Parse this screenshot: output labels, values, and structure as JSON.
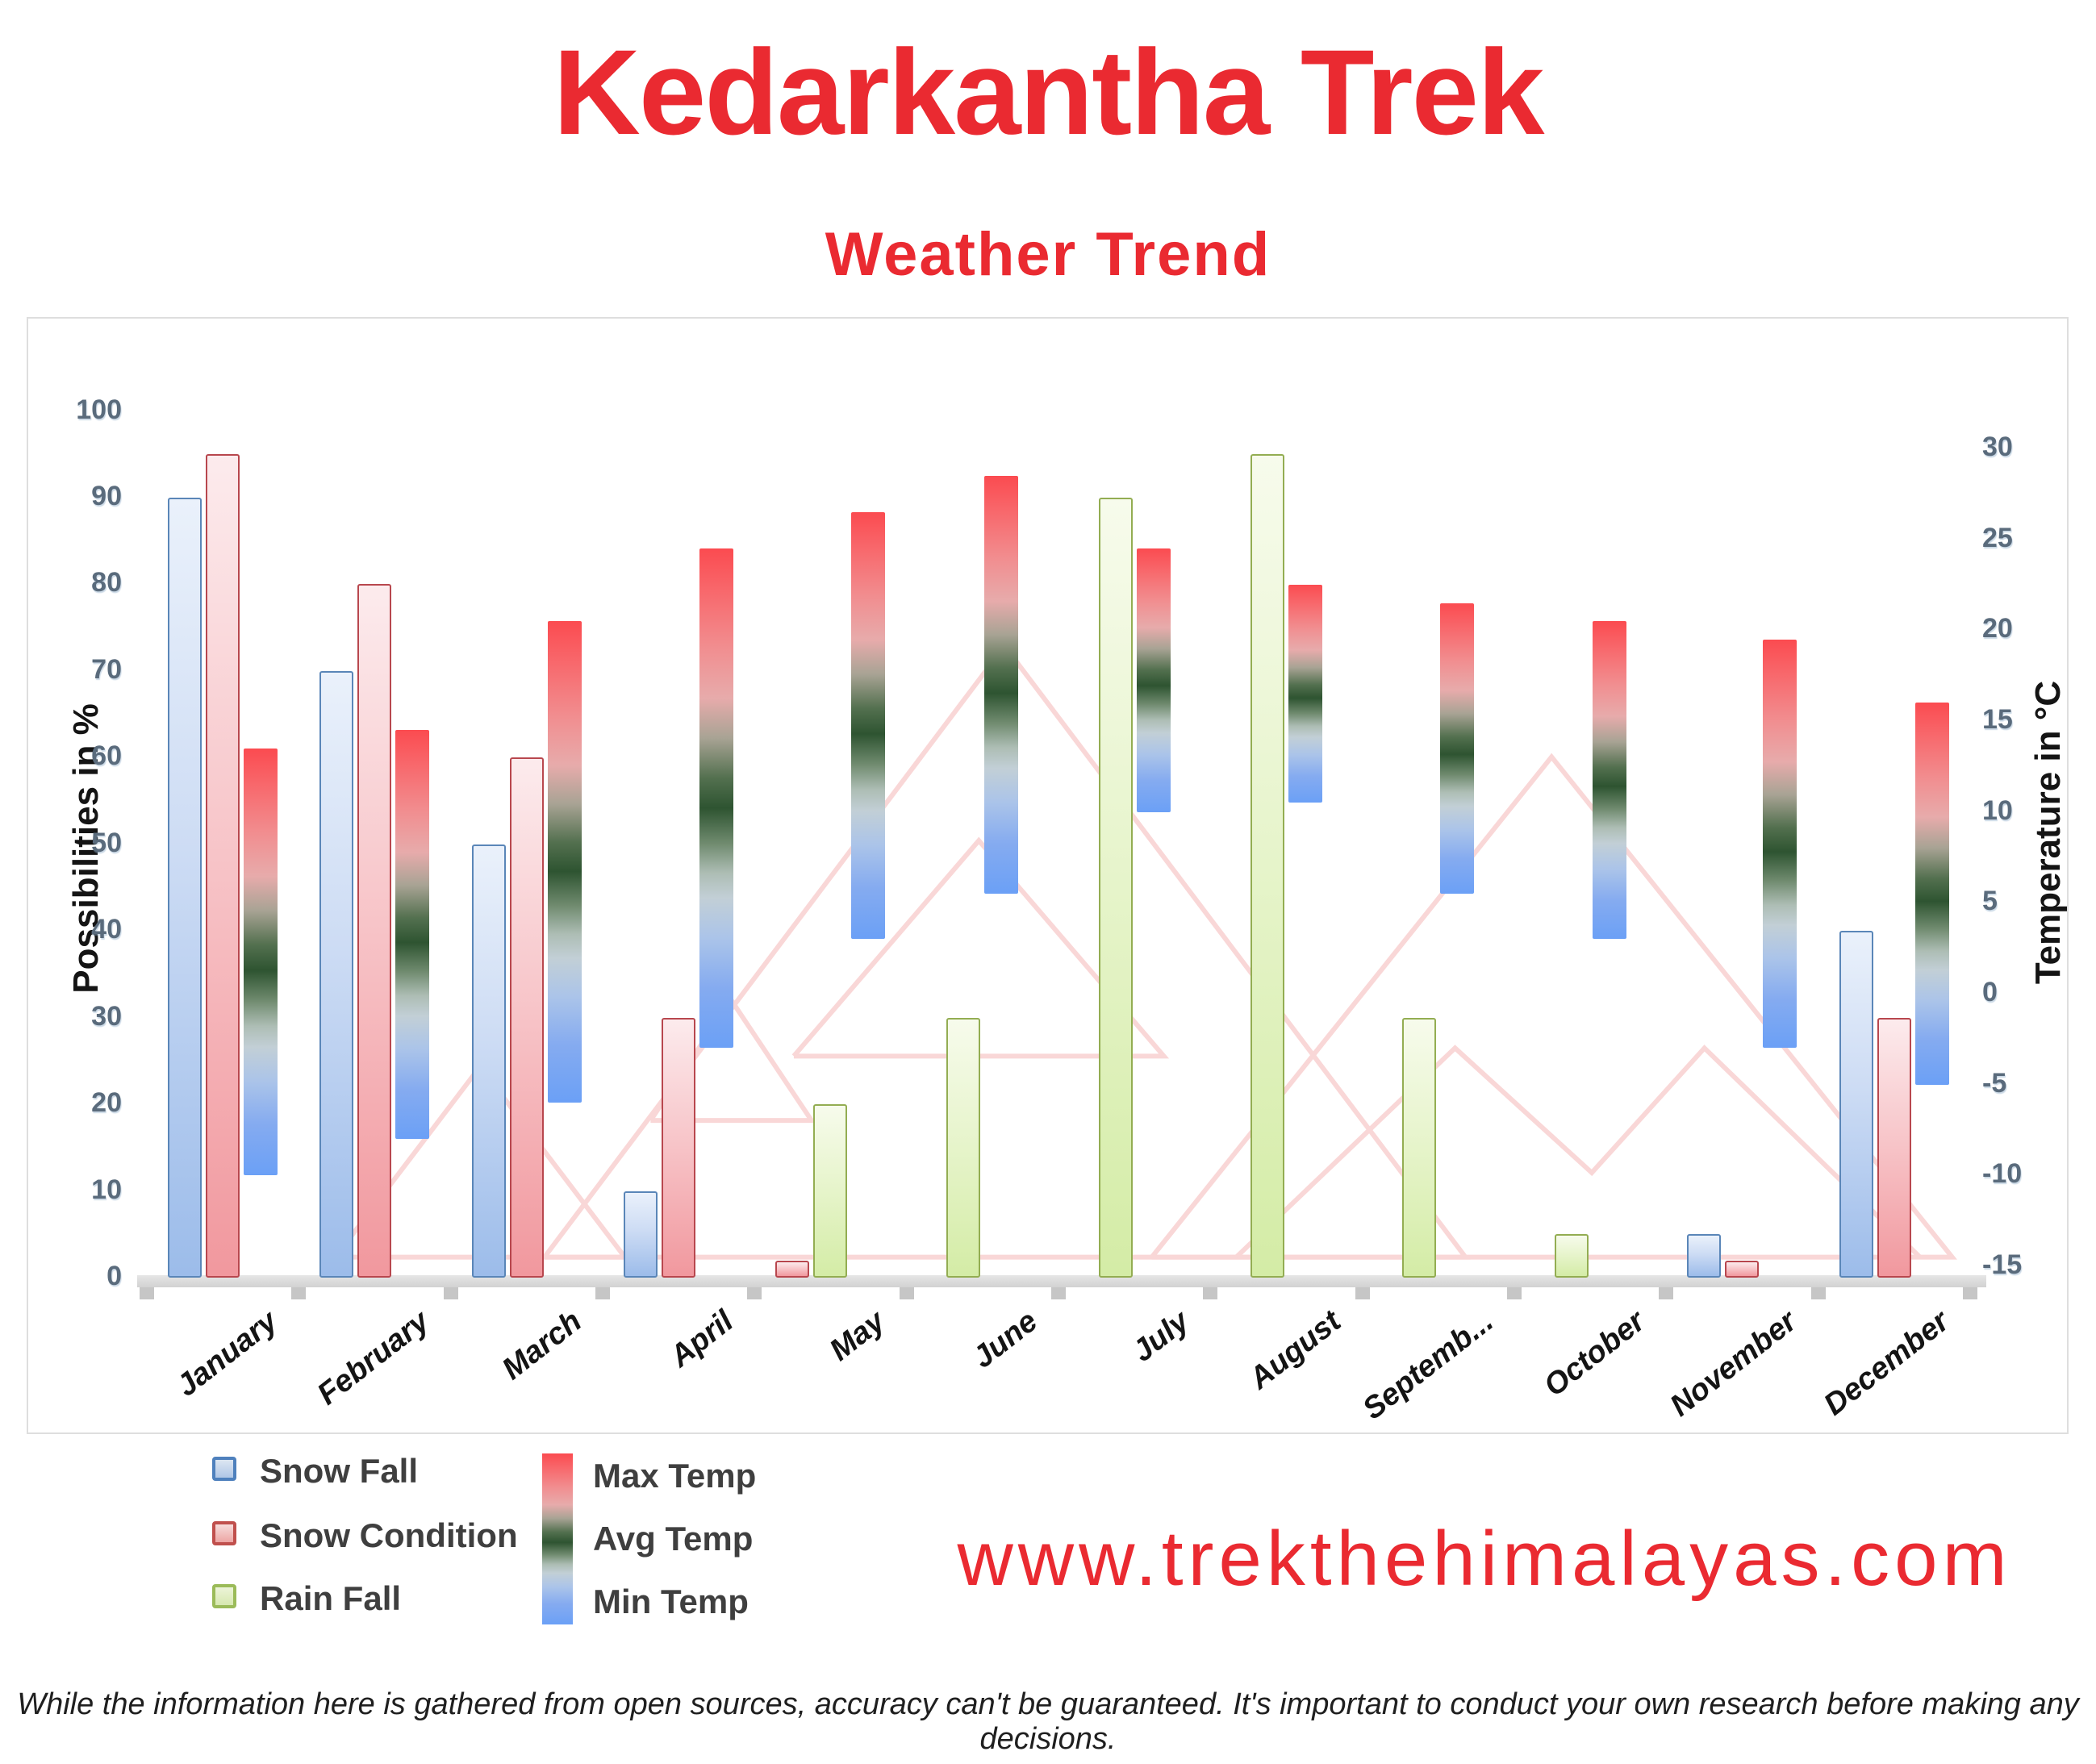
{
  "header": {
    "title": "Kedarkantha Trek",
    "subtitle": "Weather Trend"
  },
  "axes": {
    "left_title": "Possibilities in %",
    "right_title": "Temperature in °C",
    "left_ticks": [
      0,
      10,
      20,
      30,
      40,
      50,
      60,
      70,
      80,
      90,
      100
    ],
    "right_ticks": [
      30,
      25,
      20,
      15,
      10,
      5,
      0,
      -5,
      -10,
      -15
    ]
  },
  "legend": {
    "snow_fall": "Snow Fall",
    "snow_condition": "Snow Condition",
    "rain_fall": "Rain Fall",
    "max_temp": "Max Temp",
    "avg_temp": "Avg Temp",
    "min_temp": "Min Temp"
  },
  "footer": {
    "website": "www.trekthehimalayas.com",
    "disclaimer": "While the information here is gathered from open sources, accuracy can't be guaranteed. It's important to conduct your own research before making any decisions."
  },
  "colors": {
    "accent_red": "#ea2a31",
    "snow_fall_border": "#5a86b8",
    "snow_fall_fill": "#9cbcea",
    "snow_condition_border": "#b8474e",
    "snow_condition_fill": "#f1989e",
    "rain_fall_border": "#93ad52",
    "rain_fall_fill": "#d4eca6",
    "temp_max_color": "#fb4b50",
    "temp_avg_color": "#2e5431",
    "temp_min_color": "#6ba0f6",
    "tick_label_color": "#5a6b7c",
    "watermark_color": "#f9d7d7"
  },
  "chart_data": {
    "type": "bar",
    "title": "Kedarkantha Trek — Weather Trend",
    "categories": [
      "January",
      "February",
      "March",
      "April",
      "May",
      "June",
      "July",
      "August",
      "September",
      "October",
      "November",
      "December"
    ],
    "category_labels_display": [
      "January",
      "February",
      "March",
      "April",
      "May",
      "June",
      "July",
      "August",
      "Septemb...",
      "October",
      "November",
      "December"
    ],
    "series": [
      {
        "name": "Snow Fall",
        "axis": "left",
        "unit": "%",
        "values": [
          90,
          70,
          50,
          10,
          0,
          0,
          0,
          0,
          0,
          0,
          5,
          40
        ]
      },
      {
        "name": "Snow Condition",
        "axis": "left",
        "unit": "%",
        "values": [
          95,
          80,
          60,
          30,
          2,
          0,
          0,
          0,
          0,
          0,
          2,
          30
        ]
      },
      {
        "name": "Rain Fall",
        "axis": "left",
        "unit": "%",
        "values": [
          0,
          0,
          0,
          0,
          20,
          30,
          90,
          95,
          30,
          5,
          0,
          0
        ]
      },
      {
        "name": "Max Temp",
        "axis": "right",
        "unit": "°C",
        "values": [
          13.5,
          14.5,
          20.5,
          24.5,
          26.5,
          28.5,
          24.5,
          22.5,
          21.5,
          20.5,
          19.5,
          16
        ]
      },
      {
        "name": "Min Temp",
        "axis": "right",
        "unit": "°C",
        "values": [
          -10,
          -8,
          -6,
          -3,
          3,
          5.5,
          10,
          10.5,
          5.5,
          3,
          -3,
          -5
        ]
      }
    ],
    "xlabel": "",
    "ylabel_left": "Possibilities in %",
    "ylabel_right": "Temperature in °C",
    "left_axis_range": [
      0,
      100
    ],
    "right_axis_range": [
      -15,
      30
    ],
    "grid": false,
    "legend_position": "bottom-left",
    "notes": "Temperature drawn as floating gradient bars spanning Min Temp to Max Temp (red = max, dark green = avg zone, blue = min)."
  }
}
